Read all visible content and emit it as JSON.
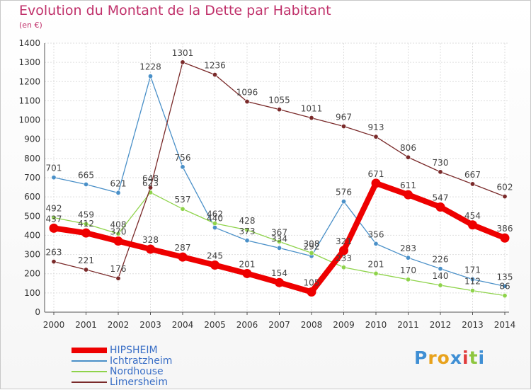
{
  "header": {
    "title": "Evolution du Montant de la Dette par Habitant",
    "subtitle": "(en €)"
  },
  "logo": {
    "text": "Proxiti"
  },
  "colors": {
    "title": "#c0306a",
    "legend_text": "#3a6fc6",
    "grid": "#dddddd",
    "axis": "#555555"
  },
  "chart_data": {
    "type": "line",
    "title": "Evolution du Montant de la Dette par Habitant",
    "ylabel": "(en €)",
    "xlabel": "",
    "ylim": [
      0,
      1400
    ],
    "yticks": [
      0,
      100,
      200,
      300,
      400,
      500,
      600,
      700,
      800,
      900,
      1000,
      1100,
      1200,
      1300,
      1400
    ],
    "grid": true,
    "legend_position": "bottom-left",
    "categories": [
      "2000",
      "2001",
      "2002",
      "2003",
      "2004",
      "2005",
      "2006",
      "2007",
      "2008",
      "2009",
      "2010",
      "2011",
      "2012",
      "2013",
      "2014"
    ],
    "series": [
      {
        "name": "HIPSHEIM",
        "color": "#ee0000",
        "values": [
          437,
          412,
          370,
          328,
          287,
          245,
          201,
          154,
          105,
          321,
          671,
          611,
          547,
          454,
          386
        ],
        "labels": [
          "437",
          "412",
          "370",
          "328",
          "287",
          "245",
          "201",
          "154",
          "105",
          "321",
          "671",
          "611",
          "547",
          "454",
          "386"
        ]
      },
      {
        "name": "Ichtratzheim",
        "color": "#4a90c8",
        "values": [
          701,
          665,
          621,
          1228,
          756,
          440,
          373,
          334,
          292,
          576,
          356,
          283,
          226,
          171,
          135
        ],
        "labels": [
          "701",
          "665",
          "621",
          "1228",
          "756",
          "440",
          "373",
          "334",
          "292",
          "576",
          "356",
          "283",
          "226",
          "171",
          "135"
        ]
      },
      {
        "name": "Nordhouse",
        "color": "#8ed34a",
        "values": [
          492,
          459,
          408,
          623,
          537,
          462,
          428,
          367,
          308,
          233,
          201,
          170,
          140,
          112,
          86
        ],
        "labels": [
          "492",
          "459",
          "408",
          "623",
          "537",
          "462",
          "428",
          "367",
          "308",
          "233",
          "201",
          "170",
          "140",
          "112",
          "86"
        ]
      },
      {
        "name": "Limersheim",
        "color": "#7a2a2a",
        "values": [
          263,
          221,
          176,
          648,
          1301,
          1236,
          1096,
          1055,
          1011,
          967,
          913,
          806,
          730,
          667,
          602
        ],
        "labels": [
          "263",
          "221",
          "176",
          "648",
          "1301",
          "1236",
          "1096",
          "1055",
          "1011",
          "967",
          "913",
          "806",
          "730",
          "667",
          "602"
        ]
      }
    ]
  }
}
